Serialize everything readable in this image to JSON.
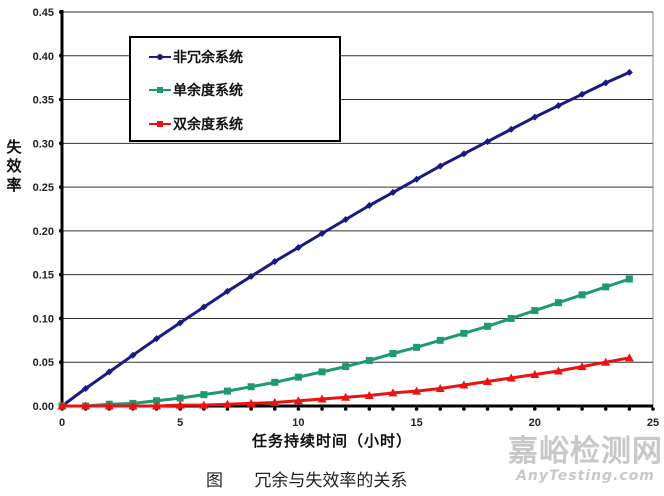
{
  "chart_data": {
    "type": "line",
    "title": "",
    "xlabel": "任务持续时间（小时）",
    "ylabel": "失效率",
    "xlim": [
      0,
      25
    ],
    "ylim": [
      0,
      0.45
    ],
    "x_ticks": [
      "0",
      "5",
      "10",
      "15",
      "20",
      "25"
    ],
    "y_ticks": [
      "0.00",
      "0.05",
      "0.10",
      "0.15",
      "0.20",
      "0.25",
      "0.30",
      "0.35",
      "0.40",
      "0.45"
    ],
    "grid": "horizontal",
    "legend_position": "upper-left",
    "x": [
      0,
      1,
      2,
      3,
      4,
      5,
      6,
      7,
      8,
      9,
      10,
      11,
      12,
      13,
      14,
      15,
      16,
      17,
      18,
      19,
      20,
      21,
      22,
      23,
      24
    ],
    "series": [
      {
        "name": "非冗余系统",
        "color": "#1a1a80",
        "marker": "diamond",
        "values": [
          0.0,
          0.02,
          0.039,
          0.058,
          0.077,
          0.095,
          0.113,
          0.131,
          0.148,
          0.165,
          0.181,
          0.197,
          0.213,
          0.229,
          0.244,
          0.259,
          0.274,
          0.288,
          0.302,
          0.316,
          0.33,
          0.343,
          0.356,
          0.369,
          0.381
        ]
      },
      {
        "name": "单余度系统",
        "color": "#1e9a6e",
        "marker": "square",
        "values": [
          0.0,
          0.0,
          0.002,
          0.003,
          0.006,
          0.009,
          0.013,
          0.017,
          0.022,
          0.027,
          0.033,
          0.039,
          0.045,
          0.052,
          0.06,
          0.067,
          0.075,
          0.083,
          0.091,
          0.1,
          0.109,
          0.118,
          0.127,
          0.136,
          0.145
        ]
      },
      {
        "name": "双余度系统",
        "color": "#ee1111",
        "marker": "triangle",
        "values": [
          0.0,
          0.0,
          0.0,
          0.0,
          0.0,
          0.001,
          0.001,
          0.002,
          0.003,
          0.004,
          0.006,
          0.008,
          0.01,
          0.012,
          0.015,
          0.017,
          0.02,
          0.024,
          0.028,
          0.032,
          0.036,
          0.04,
          0.045,
          0.05,
          0.055
        ]
      }
    ]
  },
  "labels": {
    "ylabel_chars": [
      "失",
      "效",
      "率"
    ],
    "xlabel": "任务持续时间（小时）",
    "caption_prefix": "图",
    "caption": "冗余与失效率的关系",
    "legend": [
      "非冗余系统",
      "单余度系统",
      "双余度系统"
    ]
  },
  "watermark": {
    "cn": "嘉峪检测网",
    "en": "AnyTesting.com"
  }
}
